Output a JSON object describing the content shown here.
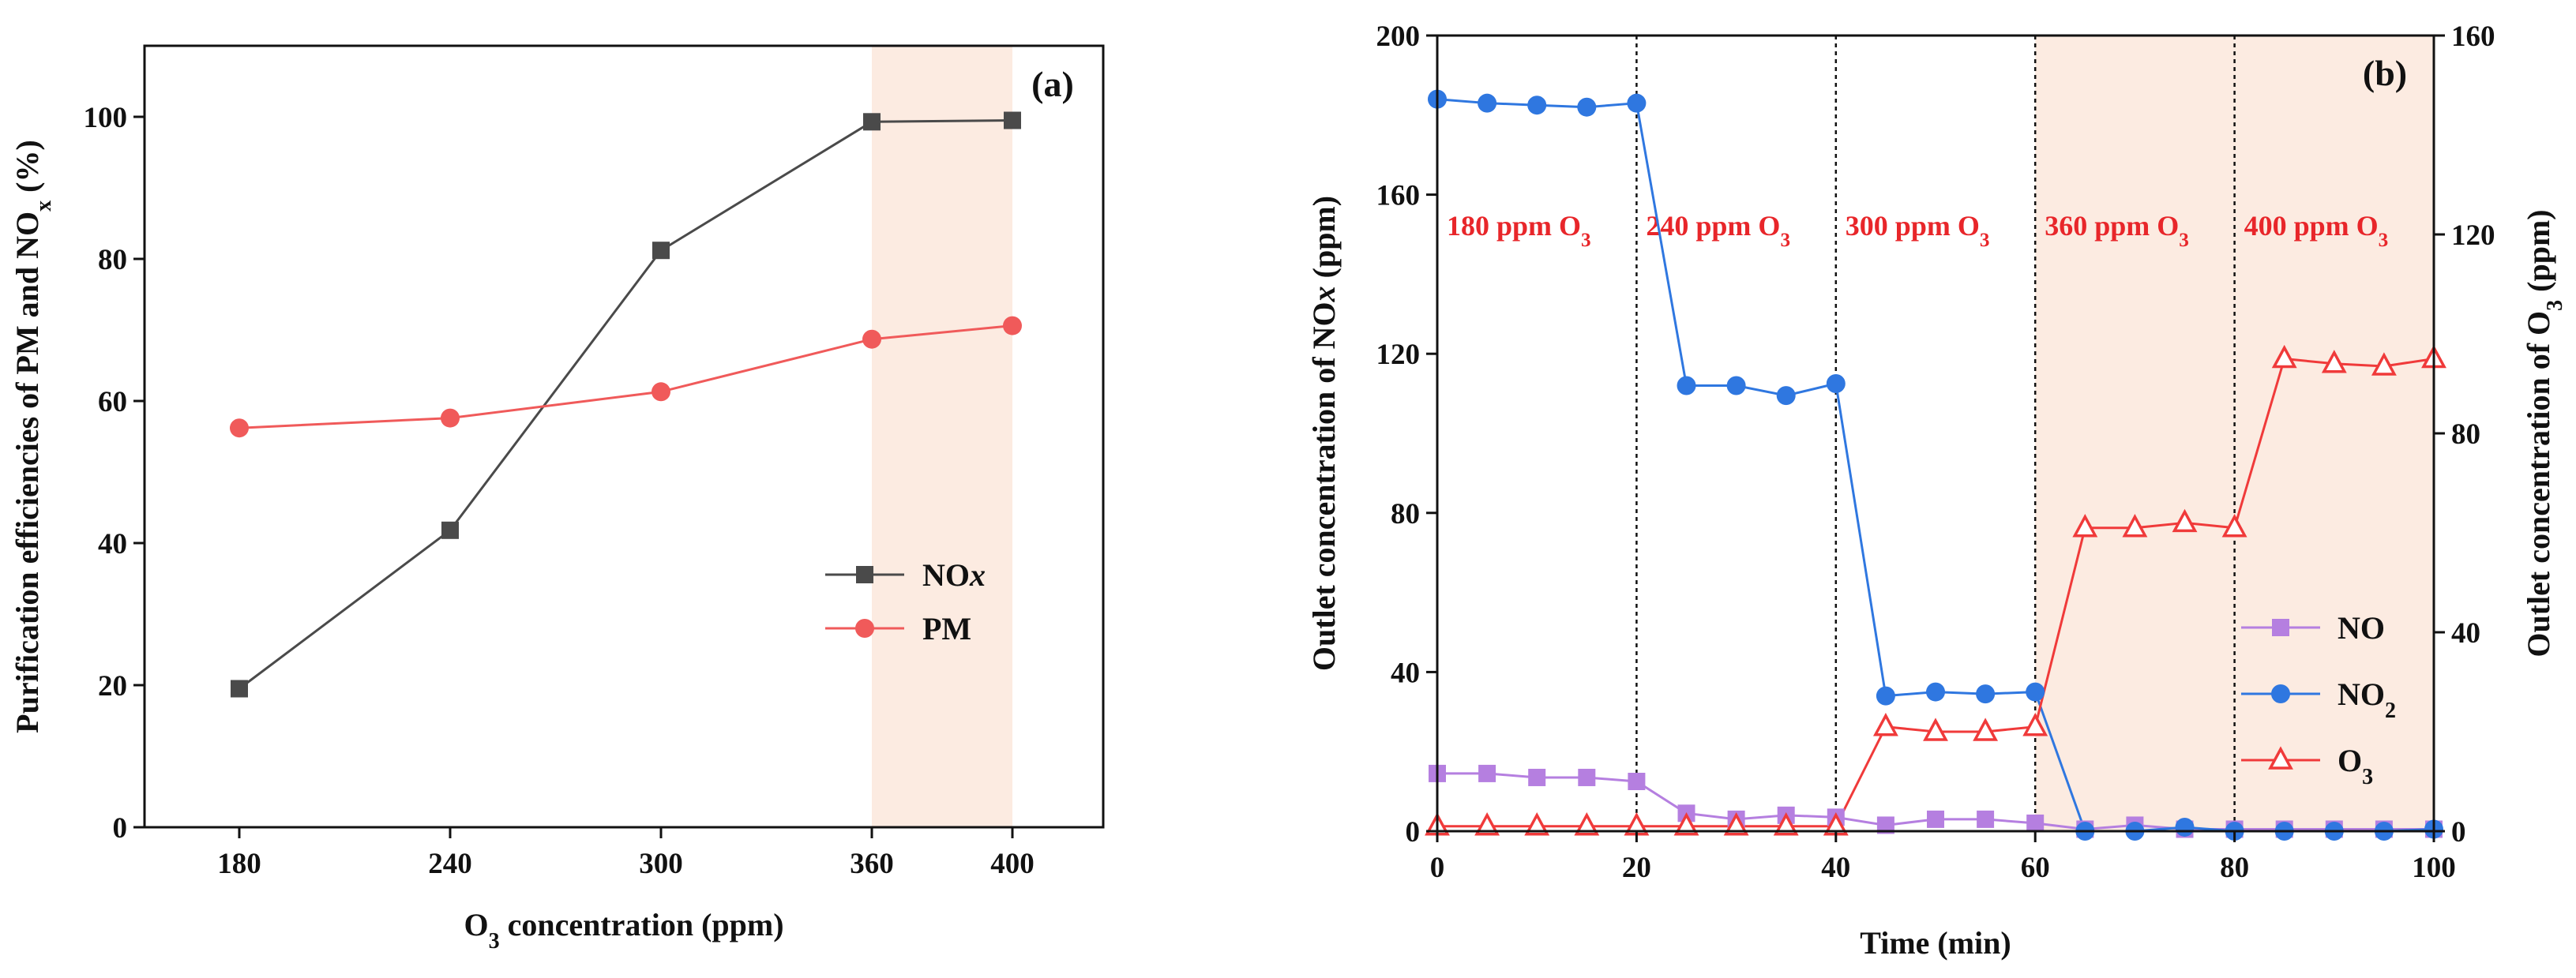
{
  "chart_data": [
    {
      "id": "a",
      "type": "line",
      "panel_label": "(a)",
      "x": [
        180,
        240,
        300,
        360,
        400
      ],
      "x_tick_labels": [
        "180",
        "240",
        "300",
        "360",
        "400"
      ],
      "xlabel": {
        "main": "O",
        "sub": "3",
        "rest": " concentration (ppm)"
      },
      "ylabel": {
        "main": "Purification efficiencies of PM and NO",
        "sub": "x",
        "rest": " (%)"
      },
      "ylim": [
        0,
        110
      ],
      "y_ticks": [
        0,
        20,
        40,
        60,
        80,
        100
      ],
      "highlight_x": [
        360,
        400
      ],
      "highlight_color": "#fcebe1",
      "series": [
        {
          "name": "NOx",
          "legend_main": "NO",
          "legend_italic": "x",
          "color": "#4a4a4a",
          "marker": "square",
          "values": [
            19.5,
            41.8,
            81.2,
            99.3,
            99.5
          ]
        },
        {
          "name": "PM",
          "legend_main": "PM",
          "legend_italic": "",
          "color": "#f05a5a",
          "marker": "circle",
          "values": [
            56.2,
            57.6,
            61.3,
            68.7,
            70.6
          ]
        }
      ]
    },
    {
      "id": "b",
      "type": "line",
      "panel_label": "(b)",
      "xlabel": "Time (min)",
      "ylabel_left": {
        "main": "Outlet concentration of NO",
        "italic": "x",
        "rest": "  (ppm)"
      },
      "ylabel_right": {
        "main": "Outlet concentration of O",
        "sub": "3",
        "rest": " (ppm)"
      },
      "xlim": [
        0,
        100
      ],
      "x_ticks": [
        0,
        20,
        40,
        60,
        80,
        100
      ],
      "ylim_left": [
        0,
        200
      ],
      "y_ticks_left": [
        0,
        40,
        80,
        120,
        160,
        200
      ],
      "ylim_right": [
        0,
        160
      ],
      "y_ticks_right": [
        0,
        40,
        80,
        120,
        160
      ],
      "dividers": [
        20,
        40,
        60,
        80
      ],
      "highlight_x": [
        60,
        100
      ],
      "highlight_color": "#fcebe1",
      "periods": [
        {
          "main": "180 ppm O",
          "sub": "3",
          "x_start": 0
        },
        {
          "main": "240 ppm O",
          "sub": "3",
          "x_start": 20
        },
        {
          "main": "300 ppm O",
          "sub": "3",
          "x_start": 40
        },
        {
          "main": "360 ppm O",
          "sub": "3",
          "x_start": 60
        },
        {
          "main": "400 ppm O",
          "sub": "3",
          "x_start": 80
        }
      ],
      "x": [
        0,
        5,
        10,
        15,
        20,
        25,
        30,
        35,
        40,
        45,
        50,
        55,
        60,
        65,
        70,
        75,
        80,
        85,
        90,
        95,
        100
      ],
      "series": [
        {
          "name": "NO",
          "legend_main": "NO",
          "legend_sub": "",
          "axis": "left",
          "color": "#b57fe0",
          "marker": "square",
          "values": [
            14.5,
            14.5,
            13.5,
            13.5,
            12.5,
            4.5,
            3,
            4,
            3.5,
            1.5,
            3,
            3,
            2,
            0.5,
            1.5,
            0.5,
            0.5,
            0.5,
            0.5,
            0.5,
            0.5
          ]
        },
        {
          "name": "NO2",
          "legend_main": "NO",
          "legend_sub": "2",
          "axis": "left",
          "color": "#2f77e0",
          "marker": "circle",
          "values": [
            184,
            183,
            182.5,
            182,
            183,
            112,
            112,
            109.5,
            112.5,
            34,
            35,
            34.5,
            35,
            0,
            0,
            1,
            0,
            0,
            0,
            0,
            0.5
          ]
        },
        {
          "name": "O3",
          "legend_main": "O",
          "legend_sub": "3",
          "axis": "right",
          "color": "#f03a3a",
          "marker": "triangle-open",
          "values": [
            1,
            1,
            1,
            1,
            1,
            1,
            1,
            1,
            1,
            21,
            20,
            20,
            21,
            61,
            61,
            62,
            61,
            95,
            94,
            93.5,
            95
          ]
        }
      ]
    }
  ]
}
